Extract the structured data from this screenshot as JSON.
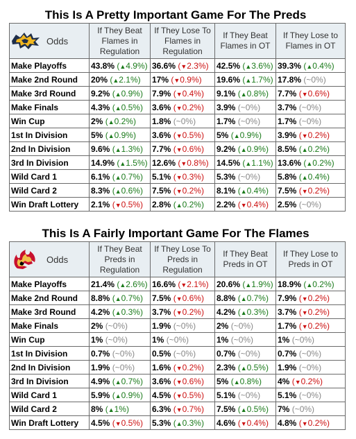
{
  "tables": [
    {
      "title": "This Is A Pretty Important Game For The Preds",
      "team": "preds",
      "odds_label": "Odds",
      "headers": [
        "If They Beat Flames in Regulation",
        "If They Lose To Flames in Regulation",
        "If They Beat Flames in OT",
        "If They Lose to Flames in OT"
      ],
      "rows": [
        {
          "label": "Make Playoffs",
          "cells": [
            {
              "v": "43.8%",
              "d": "4.9%",
              "t": "up"
            },
            {
              "v": "36.6%",
              "d": "2.3%",
              "t": "down"
            },
            {
              "v": "42.5%",
              "d": "3.6%",
              "t": "up"
            },
            {
              "v": "39.3%",
              "d": "0.4%",
              "t": "up"
            }
          ]
        },
        {
          "label": "Make 2nd Round",
          "cells": [
            {
              "v": "20%",
              "d": "2.1%",
              "t": "up"
            },
            {
              "v": "17%",
              "d": "0.9%",
              "t": "down"
            },
            {
              "v": "19.6%",
              "d": "1.7%",
              "t": "up"
            },
            {
              "v": "17.8%",
              "d": "~0%",
              "t": "flat"
            }
          ]
        },
        {
          "label": "Make 3rd Round",
          "cells": [
            {
              "v": "9.2%",
              "d": "0.9%",
              "t": "up"
            },
            {
              "v": "7.9%",
              "d": "0.4%",
              "t": "down"
            },
            {
              "v": "9.1%",
              "d": "0.8%",
              "t": "up"
            },
            {
              "v": "7.7%",
              "d": "0.6%",
              "t": "down"
            }
          ]
        },
        {
          "label": "Make Finals",
          "cells": [
            {
              "v": "4.3%",
              "d": "0.5%",
              "t": "up"
            },
            {
              "v": "3.6%",
              "d": "0.2%",
              "t": "down"
            },
            {
              "v": "3.9%",
              "d": "~0%",
              "t": "flat"
            },
            {
              "v": "3.7%",
              "d": "~0%",
              "t": "flat"
            }
          ]
        },
        {
          "label": "Win Cup",
          "cells": [
            {
              "v": "2%",
              "d": "0.2%",
              "t": "up"
            },
            {
              "v": "1.8%",
              "d": "~0%",
              "t": "flat"
            },
            {
              "v": "1.7%",
              "d": "~0%",
              "t": "flat"
            },
            {
              "v": "1.7%",
              "d": "~0%",
              "t": "flat"
            }
          ]
        },
        {
          "label": "1st In Division",
          "cells": [
            {
              "v": "5%",
              "d": "0.9%",
              "t": "up"
            },
            {
              "v": "3.6%",
              "d": "0.5%",
              "t": "down"
            },
            {
              "v": "5%",
              "d": "0.9%",
              "t": "up"
            },
            {
              "v": "3.9%",
              "d": "0.2%",
              "t": "down"
            }
          ]
        },
        {
          "label": "2nd In Division",
          "cells": [
            {
              "v": "9.6%",
              "d": "1.3%",
              "t": "up"
            },
            {
              "v": "7.7%",
              "d": "0.6%",
              "t": "down"
            },
            {
              "v": "9.2%",
              "d": "0.9%",
              "t": "up"
            },
            {
              "v": "8.5%",
              "d": "0.2%",
              "t": "up"
            }
          ]
        },
        {
          "label": "3rd In Division",
          "cells": [
            {
              "v": "14.9%",
              "d": "1.5%",
              "t": "up"
            },
            {
              "v": "12.6%",
              "d": "0.8%",
              "t": "down"
            },
            {
              "v": "14.5%",
              "d": "1.1%",
              "t": "up"
            },
            {
              "v": "13.6%",
              "d": "0.2%",
              "t": "up"
            }
          ]
        },
        {
          "label": "Wild Card 1",
          "cells": [
            {
              "v": "6.1%",
              "d": "0.7%",
              "t": "up"
            },
            {
              "v": "5.1%",
              "d": "0.3%",
              "t": "down"
            },
            {
              "v": "5.3%",
              "d": "~0%",
              "t": "flat"
            },
            {
              "v": "5.8%",
              "d": "0.4%",
              "t": "up"
            }
          ]
        },
        {
          "label": "Wild Card 2",
          "cells": [
            {
              "v": "8.3%",
              "d": "0.6%",
              "t": "up"
            },
            {
              "v": "7.5%",
              "d": "0.2%",
              "t": "down"
            },
            {
              "v": "8.1%",
              "d": "0.4%",
              "t": "up"
            },
            {
              "v": "7.5%",
              "d": "0.2%",
              "t": "down"
            }
          ]
        },
        {
          "label": "Win Draft Lottery",
          "cells": [
            {
              "v": "2.1%",
              "d": "0.5%",
              "t": "down"
            },
            {
              "v": "2.8%",
              "d": "0.2%",
              "t": "up"
            },
            {
              "v": "2.2%",
              "d": "0.4%",
              "t": "down"
            },
            {
              "v": "2.5%",
              "d": "~0%",
              "t": "flat"
            }
          ]
        }
      ]
    },
    {
      "title": "This Is A Fairly Important Game For The Flames",
      "team": "flames",
      "odds_label": "Odds",
      "headers": [
        "If They Beat Preds in Regulation",
        "If They Lose To Preds in Regulation",
        "If They Beat Preds in OT",
        "If They Lose to Preds in OT"
      ],
      "rows": [
        {
          "label": "Make Playoffs",
          "cells": [
            {
              "v": "21.4%",
              "d": "2.6%",
              "t": "up"
            },
            {
              "v": "16.6%",
              "d": "2.1%",
              "t": "down"
            },
            {
              "v": "20.6%",
              "d": "1.9%",
              "t": "up"
            },
            {
              "v": "18.9%",
              "d": "0.2%",
              "t": "up"
            }
          ]
        },
        {
          "label": "Make 2nd Round",
          "cells": [
            {
              "v": "8.8%",
              "d": "0.7%",
              "t": "up"
            },
            {
              "v": "7.5%",
              "d": "0.6%",
              "t": "down"
            },
            {
              "v": "8.8%",
              "d": "0.7%",
              "t": "up"
            },
            {
              "v": "7.9%",
              "d": "0.2%",
              "t": "down"
            }
          ]
        },
        {
          "label": "Make 3rd Round",
          "cells": [
            {
              "v": "4.2%",
              "d": "0.3%",
              "t": "up"
            },
            {
              "v": "3.7%",
              "d": "0.2%",
              "t": "down"
            },
            {
              "v": "4.2%",
              "d": "0.3%",
              "t": "up"
            },
            {
              "v": "3.7%",
              "d": "0.2%",
              "t": "down"
            }
          ]
        },
        {
          "label": "Make Finals",
          "cells": [
            {
              "v": "2%",
              "d": "~0%",
              "t": "flat"
            },
            {
              "v": "1.9%",
              "d": "~0%",
              "t": "flat"
            },
            {
              "v": "2%",
              "d": "~0%",
              "t": "flat"
            },
            {
              "v": "1.7%",
              "d": "0.2%",
              "t": "down"
            }
          ]
        },
        {
          "label": "Win Cup",
          "cells": [
            {
              "v": "1%",
              "d": "~0%",
              "t": "flat"
            },
            {
              "v": "1%",
              "d": "~0%",
              "t": "flat"
            },
            {
              "v": "1%",
              "d": "~0%",
              "t": "flat"
            },
            {
              "v": "1%",
              "d": "~0%",
              "t": "flat"
            }
          ]
        },
        {
          "label": "1st In Division",
          "cells": [
            {
              "v": "0.7%",
              "d": "~0%",
              "t": "flat"
            },
            {
              "v": "0.5%",
              "d": "~0%",
              "t": "flat"
            },
            {
              "v": "0.7%",
              "d": "~0%",
              "t": "flat"
            },
            {
              "v": "0.7%",
              "d": "~0%",
              "t": "flat"
            }
          ]
        },
        {
          "label": "2nd In Division",
          "cells": [
            {
              "v": "1.9%",
              "d": "~0%",
              "t": "flat"
            },
            {
              "v": "1.6%",
              "d": "0.2%",
              "t": "down"
            },
            {
              "v": "2.3%",
              "d": "0.5%",
              "t": "up"
            },
            {
              "v": "1.9%",
              "d": "~0%",
              "t": "flat"
            }
          ]
        },
        {
          "label": "3rd In Division",
          "cells": [
            {
              "v": "4.9%",
              "d": "0.7%",
              "t": "up"
            },
            {
              "v": "3.6%",
              "d": "0.6%",
              "t": "down"
            },
            {
              "v": "5%",
              "d": "0.8%",
              "t": "up"
            },
            {
              "v": "4%",
              "d": "0.2%",
              "t": "down"
            }
          ]
        },
        {
          "label": "Wild Card 1",
          "cells": [
            {
              "v": "5.9%",
              "d": "0.9%",
              "t": "up"
            },
            {
              "v": "4.5%",
              "d": "0.5%",
              "t": "down"
            },
            {
              "v": "5.1%",
              "d": "~0%",
              "t": "flat"
            },
            {
              "v": "5.1%",
              "d": "~0%",
              "t": "flat"
            }
          ]
        },
        {
          "label": "Wild Card 2",
          "cells": [
            {
              "v": "8%",
              "d": "1%",
              "t": "up"
            },
            {
              "v": "6.3%",
              "d": "0.7%",
              "t": "down"
            },
            {
              "v": "7.5%",
              "d": "0.5%",
              "t": "up"
            },
            {
              "v": "7%",
              "d": "~0%",
              "t": "flat"
            }
          ]
        },
        {
          "label": "Win Draft Lottery",
          "cells": [
            {
              "v": "4.5%",
              "d": "0.5%",
              "t": "down"
            },
            {
              "v": "5.3%",
              "d": "0.3%",
              "t": "up"
            },
            {
              "v": "4.6%",
              "d": "0.4%",
              "t": "down"
            },
            {
              "v": "4.8%",
              "d": "0.2%",
              "t": "down"
            }
          ]
        }
      ]
    }
  ]
}
